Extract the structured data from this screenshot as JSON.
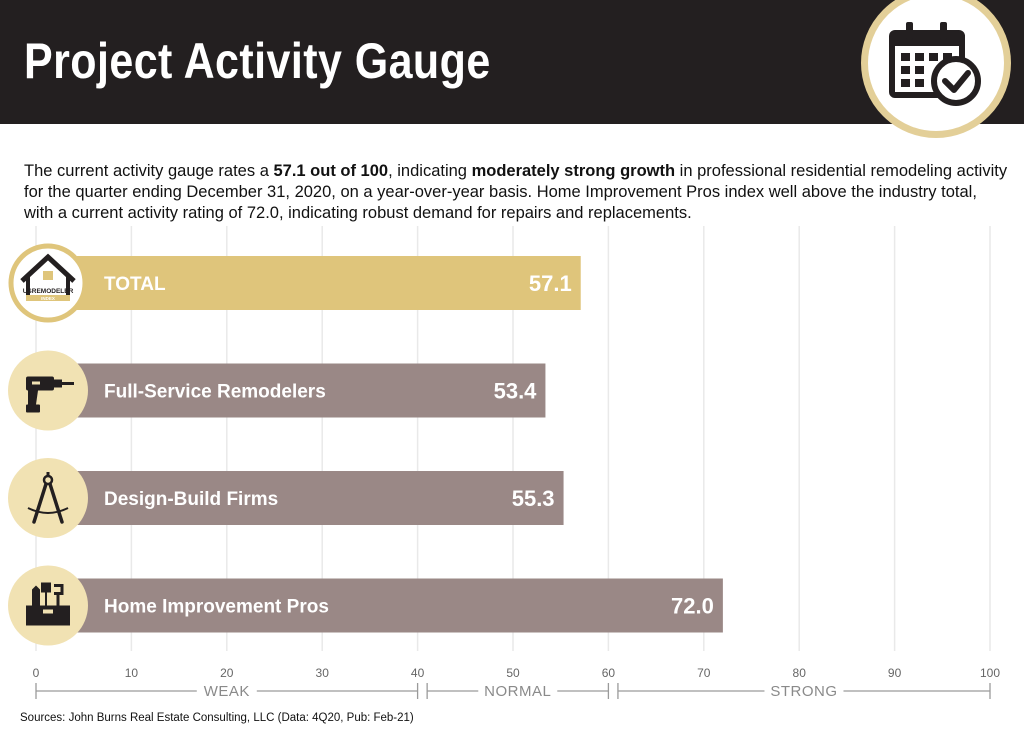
{
  "header": {
    "title": "Project Activity Gauge",
    "icon": "calendar-check-icon"
  },
  "intro": {
    "p1": "The current activity gauge rates a ",
    "b1": "57.1 out of 100",
    "p2": ", indicating ",
    "b2": "moderately strong growth",
    "p3": " in professional residential remodeling activity for the quarter ending December 31, 2020, on a year-over-year basis. Home Improvement Pros index well above the industry total, with a current activity rating of 72.0, indicating robust demand for repairs and replacements."
  },
  "logo": {
    "wordmark": "USREMODELER",
    "subtext": "INDEX"
  },
  "chart_data": {
    "type": "bar",
    "orientation": "horizontal",
    "categories": [
      "TOTAL",
      "Full-Service Remodelers",
      "Design-Build Firms",
      "Home Improvement Pros"
    ],
    "values": [
      57.1,
      53.4,
      55.3,
      72.0
    ],
    "value_labels": [
      "57.1",
      "53.4",
      "55.3",
      "72.0"
    ],
    "icons": [
      "house-logo-icon",
      "drill-icon",
      "compass-icon",
      "toolbox-icon"
    ],
    "bar_colors": [
      "#dfc57b",
      "#9a8886",
      "#9a8886",
      "#9a8886"
    ],
    "xlim": [
      0,
      100
    ],
    "xticks": [
      0,
      10,
      20,
      30,
      40,
      50,
      60,
      70,
      80,
      90,
      100
    ],
    "grid": true,
    "zones": [
      {
        "label": "WEAK",
        "range": [
          0,
          40
        ]
      },
      {
        "label": "NORMAL",
        "range": [
          41,
          60
        ]
      },
      {
        "label": "STRONG",
        "range": [
          61,
          100
        ]
      }
    ]
  },
  "colors": {
    "header_bg": "#231f20",
    "accent_gold": "#dfc57b",
    "icon_circle": "#f1e2b3",
    "bar_gray": "#9a8886"
  },
  "source": "Sources: John Burns Real Estate Consulting, LLC (Data: 4Q20, Pub: Feb-21)"
}
